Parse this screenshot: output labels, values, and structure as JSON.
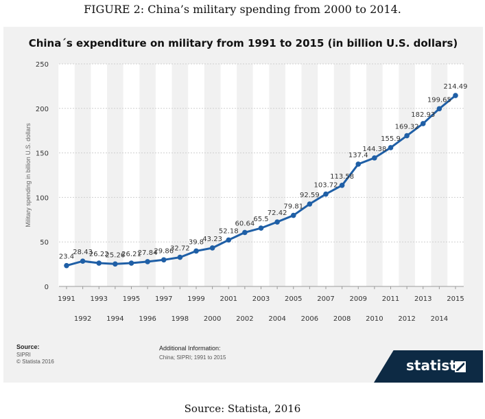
{
  "figure_caption": "FIGURE 2: China’s military spending from 2000 to 2014.",
  "source_caption": "Source: Statista, 2016",
  "footer": {
    "source_label": "Source:",
    "source_line1": "SIPRI",
    "source_line2": "© Statista 2016",
    "additional_label": "Additional Information:",
    "additional_text": "China; SIPRI; 1991 to 2015",
    "brand": "statista"
  },
  "colors": {
    "line": "#1f5fa6",
    "band": "#ffffff",
    "panel": "#f1f1f1",
    "brand_bg": "#0d2a44"
  },
  "chart_data": {
    "type": "line",
    "title": "China´s expenditure on military from 1991 to 2015 (in billion U.S. dollars)",
    "xlabel": "",
    "ylabel": "Military spending in billion U.S. dollars",
    "ylim": [
      0,
      250
    ],
    "yticks": [
      0,
      50,
      100,
      150,
      200,
      250
    ],
    "grid": true,
    "categories": [
      "1991",
      "1992",
      "1993",
      "1994",
      "1995",
      "1996",
      "1997",
      "1998",
      "1999",
      "2000",
      "2001",
      "2002",
      "2003",
      "2004",
      "2005",
      "2006",
      "2007",
      "2008",
      "2009",
      "2010",
      "2011",
      "2012",
      "2013",
      "2014",
      "2015"
    ],
    "series": [
      {
        "name": "Military spending",
        "values": [
          23.4,
          28.43,
          26.22,
          25.26,
          26.21,
          27.84,
          29.86,
          32.72,
          39.8,
          43.23,
          52.18,
          60.64,
          65.5,
          72.42,
          79.81,
          92.59,
          103.72,
          113.58,
          137.4,
          144.38,
          155.9,
          169.32,
          182.93,
          199.65,
          214.49
        ],
        "labels": [
          "23.4",
          "28.43",
          "26.22",
          "25.26",
          "26.21",
          "27.84",
          "29.86",
          "32.72",
          "39.8",
          "43.23",
          "52.18",
          "60.64",
          "65.5",
          "72.42",
          "79.81",
          "92.59",
          "103.72",
          "113.58",
          "137.4",
          "144.38",
          "155.9",
          "169.32",
          "182.93",
          "199.65",
          "214.49"
        ]
      }
    ]
  }
}
